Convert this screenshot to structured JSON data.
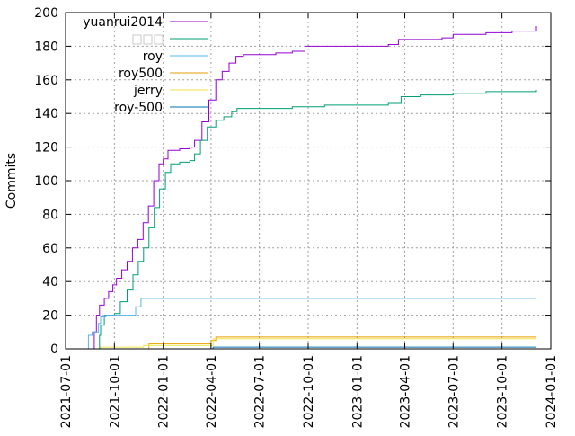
{
  "chart_data": {
    "type": "line",
    "ylabel": "Commits",
    "ylim": [
      0,
      200
    ],
    "y_ticks": [
      0,
      20,
      40,
      60,
      80,
      100,
      120,
      140,
      160,
      180,
      200
    ],
    "x_range": [
      "2021-07-01",
      "2024-01-01"
    ],
    "x_ticks": [
      "2021-07-01",
      "2021-10-01",
      "2022-01-01",
      "2022-04-01",
      "2022-07-01",
      "2022-10-01",
      "2023-01-01",
      "2023-04-01",
      "2023-07-01",
      "2023-10-01",
      "2024-01-01"
    ],
    "grid": true,
    "legend_position": "top-left",
    "series": [
      {
        "name": "yuanrui2014",
        "color": "#9400d3",
        "points": [
          [
            "2021-08-20",
            0
          ],
          [
            "2021-08-24",
            10
          ],
          [
            "2021-08-28",
            20
          ],
          [
            "2021-09-03",
            26
          ],
          [
            "2021-09-12",
            30
          ],
          [
            "2021-09-20",
            34
          ],
          [
            "2021-09-28",
            38
          ],
          [
            "2021-10-05",
            42
          ],
          [
            "2021-10-15",
            47
          ],
          [
            "2021-10-25",
            52
          ],
          [
            "2021-11-04",
            60
          ],
          [
            "2021-11-14",
            65
          ],
          [
            "2021-11-24",
            75
          ],
          [
            "2021-12-04",
            85
          ],
          [
            "2021-12-14",
            100
          ],
          [
            "2021-12-24",
            110
          ],
          [
            "2022-01-01",
            113
          ],
          [
            "2022-01-10",
            118
          ],
          [
            "2022-02-01",
            119
          ],
          [
            "2022-02-20",
            120
          ],
          [
            "2022-03-01",
            124
          ],
          [
            "2022-03-15",
            135
          ],
          [
            "2022-03-28",
            148
          ],
          [
            "2022-04-10",
            160
          ],
          [
            "2022-04-22",
            165
          ],
          [
            "2022-05-05",
            170
          ],
          [
            "2022-05-18",
            174
          ],
          [
            "2022-06-01",
            175
          ],
          [
            "2022-07-01",
            175
          ],
          [
            "2022-08-01",
            176
          ],
          [
            "2022-09-01",
            177
          ],
          [
            "2022-09-25",
            180
          ],
          [
            "2022-12-01",
            180
          ],
          [
            "2023-03-01",
            181
          ],
          [
            "2023-03-20",
            184
          ],
          [
            "2023-05-01",
            184
          ],
          [
            "2023-06-10",
            185
          ],
          [
            "2023-07-01",
            187
          ],
          [
            "2023-09-01",
            188
          ],
          [
            "2023-10-20",
            189
          ],
          [
            "2023-11-25",
            189
          ],
          [
            "2023-12-05",
            192
          ]
        ]
      },
      {
        "name": "",
        "color": "#009e73",
        "points": [
          [
            "2021-09-01",
            0
          ],
          [
            "2021-09-03",
            8
          ],
          [
            "2021-09-05",
            14
          ],
          [
            "2021-09-12",
            20
          ],
          [
            "2021-10-01",
            21
          ],
          [
            "2021-10-12",
            28
          ],
          [
            "2021-10-25",
            35
          ],
          [
            "2021-11-05",
            44
          ],
          [
            "2021-11-15",
            52
          ],
          [
            "2021-11-25",
            60
          ],
          [
            "2021-12-05",
            72
          ],
          [
            "2021-12-15",
            84
          ],
          [
            "2021-12-25",
            95
          ],
          [
            "2022-01-05",
            105
          ],
          [
            "2022-01-15",
            110
          ],
          [
            "2022-02-01",
            111
          ],
          [
            "2022-02-20",
            112
          ],
          [
            "2022-03-01",
            116
          ],
          [
            "2022-03-12",
            124
          ],
          [
            "2022-03-25",
            132
          ],
          [
            "2022-04-10",
            136
          ],
          [
            "2022-04-25",
            138
          ],
          [
            "2022-05-10",
            141
          ],
          [
            "2022-05-20",
            143
          ],
          [
            "2022-07-01",
            143
          ],
          [
            "2022-09-01",
            144
          ],
          [
            "2022-11-01",
            145
          ],
          [
            "2023-01-01",
            145
          ],
          [
            "2023-03-01",
            146
          ],
          [
            "2023-03-25",
            150
          ],
          [
            "2023-05-01",
            151
          ],
          [
            "2023-07-01",
            152
          ],
          [
            "2023-09-01",
            153
          ],
          [
            "2023-12-05",
            154
          ]
        ]
      },
      {
        "name": "roy",
        "color": "#56b4e9",
        "points": [
          [
            "2021-08-10",
            0
          ],
          [
            "2021-08-13",
            8
          ],
          [
            "2021-08-20",
            10
          ],
          [
            "2021-08-28",
            10
          ],
          [
            "2021-09-01",
            15
          ],
          [
            "2021-09-05",
            19
          ],
          [
            "2021-09-10",
            19
          ],
          [
            "2021-09-15",
            20
          ],
          [
            "2021-11-01",
            20
          ],
          [
            "2021-11-10",
            25
          ],
          [
            "2021-11-20",
            30
          ],
          [
            "2023-12-05",
            30
          ]
        ]
      },
      {
        "name": "roy500",
        "color": "#e69f00",
        "points": [
          [
            "2021-11-25",
            0
          ],
          [
            "2021-12-05",
            3
          ],
          [
            "2022-03-25",
            3
          ],
          [
            "2022-04-01",
            5
          ],
          [
            "2022-04-10",
            7
          ],
          [
            "2023-12-05",
            7
          ]
        ]
      },
      {
        "name": "jerry",
        "color": "#f0e442",
        "points": [
          [
            "2021-09-01",
            0
          ],
          [
            "2021-09-05",
            1
          ],
          [
            "2021-11-20",
            1
          ],
          [
            "2021-11-25",
            2
          ],
          [
            "2022-04-01",
            2
          ],
          [
            "2022-04-05",
            6
          ],
          [
            "2023-12-05",
            6
          ]
        ]
      },
      {
        "name": "roy-500",
        "color": "#0072b2",
        "points": [
          [
            "2022-04-01",
            0
          ],
          [
            "2022-04-05",
            1
          ],
          [
            "2023-12-05",
            1
          ]
        ]
      }
    ]
  }
}
